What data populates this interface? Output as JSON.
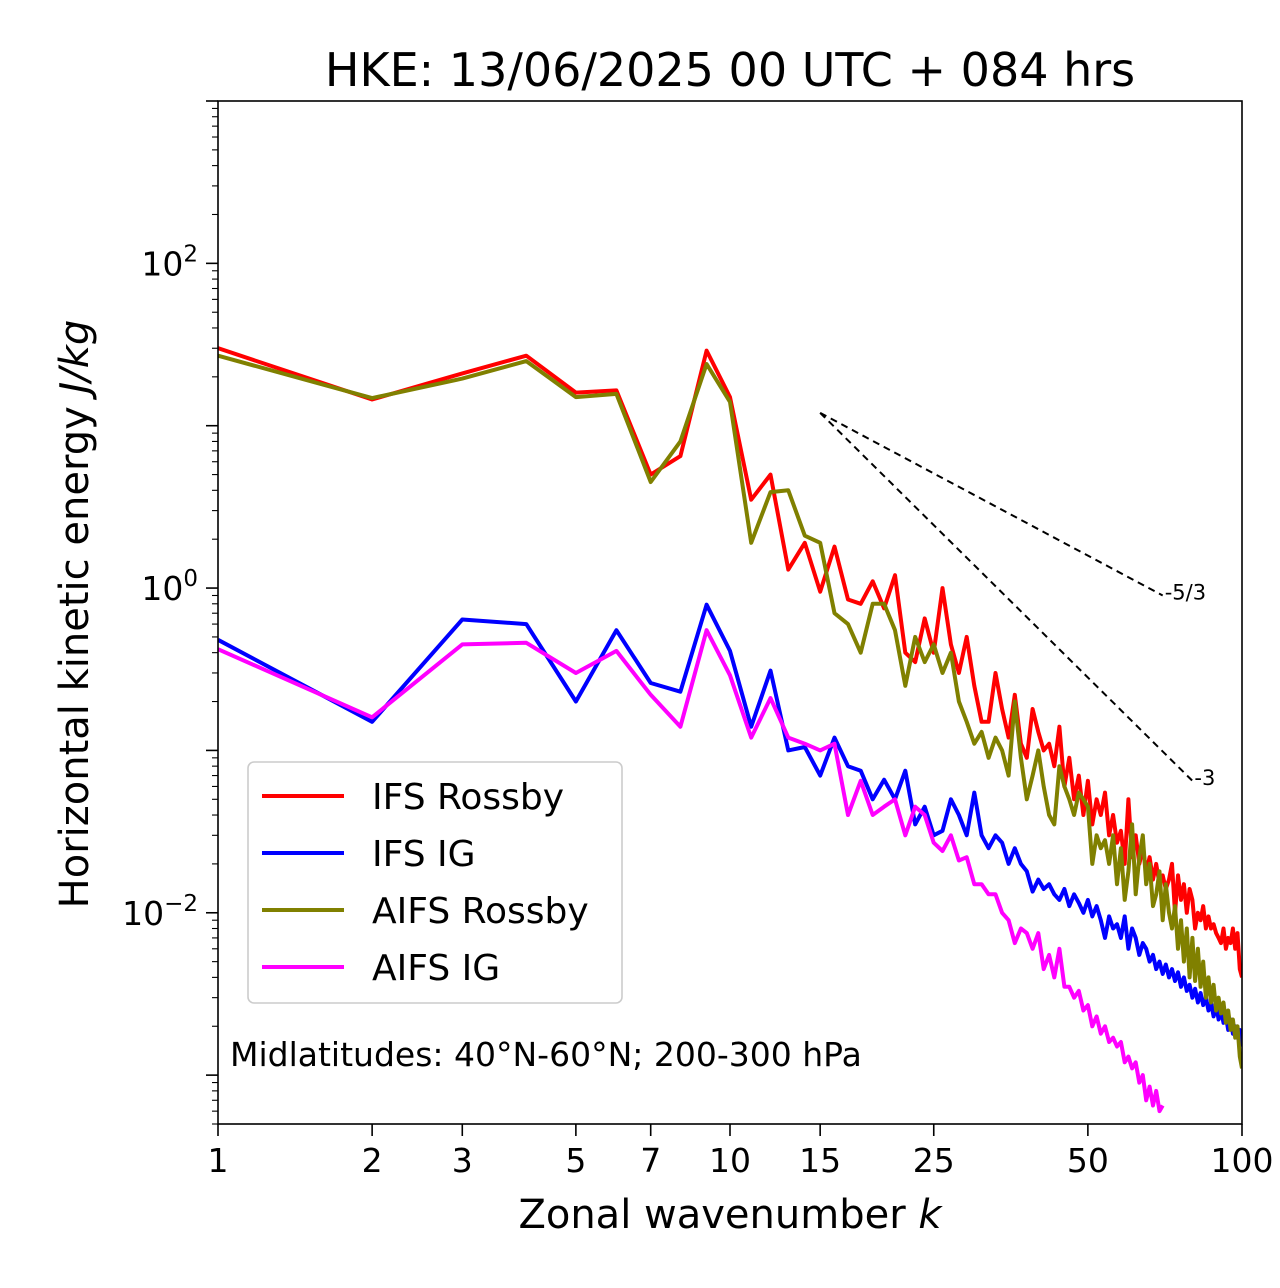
{
  "chart_data": {
    "type": "line",
    "title": "HKE: 13/06/2025 00 UTC + 084 hrs",
    "xlabel": "Zonal wavenumber",
    "xlabel_var": "k",
    "ylabel": "Horizontal kinetic energy",
    "ylabel_unit": "J/kg",
    "xscale": "log",
    "yscale": "log",
    "xlim": [
      1,
      100
    ],
    "ylim": [
      0.0005,
      1000
    ],
    "xticks": [
      1,
      2,
      3,
      5,
      7,
      10,
      15,
      25,
      50,
      100
    ],
    "yticks": [
      {
        "value": 100,
        "base": "10",
        "exp": "2"
      },
      {
        "value": 1,
        "base": "10",
        "exp": "0"
      },
      {
        "value": 0.01,
        "base": "10",
        "exp": "−2"
      }
    ],
    "annotation": "Midlatitudes: 40°N-60°N; 200-300 hPa",
    "legend_position": "lower-left",
    "reference_slopes": [
      {
        "label": "-5/3",
        "x": [
          15,
          70
        ],
        "y": [
          12,
          0.9
        ]
      },
      {
        "label": "-3",
        "x": [
          15,
          80
        ],
        "y": [
          12,
          0.065
        ]
      }
    ],
    "series": [
      {
        "name": "IFS Rossby",
        "color": "#ff0000",
        "x": [
          1,
          2,
          3,
          4,
          5,
          6,
          7,
          8,
          9,
          10,
          11,
          12,
          13,
          14,
          15,
          16,
          17,
          18,
          19,
          20,
          21,
          22,
          23,
          24,
          25,
          26,
          27,
          28,
          29,
          30,
          31,
          32,
          33,
          34,
          35,
          36,
          37,
          38,
          39,
          40,
          41,
          42,
          43,
          44,
          45,
          46,
          47,
          48,
          49,
          50,
          51,
          52,
          53,
          54,
          55,
          56,
          57,
          58,
          59,
          60,
          61,
          62,
          63,
          64,
          65,
          66,
          67,
          68,
          69,
          70,
          71,
          72,
          73,
          74,
          75,
          76,
          77,
          78,
          79,
          80,
          81,
          82,
          83,
          84,
          85,
          86,
          87,
          88,
          89,
          90,
          91,
          92,
          93,
          94,
          95,
          96,
          97,
          98,
          99,
          100
        ],
        "y": [
          30,
          14.5,
          21,
          27,
          16,
          16.5,
          5,
          6.5,
          29,
          15,
          3.5,
          5,
          1.3,
          1.9,
          0.95,
          1.8,
          0.85,
          0.8,
          1.1,
          0.75,
          1.2,
          0.4,
          0.35,
          0.65,
          0.4,
          1,
          0.45,
          0.3,
          0.5,
          0.25,
          0.15,
          0.15,
          0.3,
          0.18,
          0.12,
          0.22,
          0.11,
          0.09,
          0.18,
          0.13,
          0.1,
          0.11,
          0.08,
          0.14,
          0.06,
          0.09,
          0.05,
          0.07,
          0.04,
          0.065,
          0.035,
          0.05,
          0.04,
          0.055,
          0.03,
          0.04,
          0.027,
          0.032,
          0.02,
          0.05,
          0.022,
          0.03,
          0.02,
          0.025,
          0.018,
          0.022,
          0.016,
          0.02,
          0.015,
          0.017,
          0.014,
          0.016,
          0.02,
          0.01,
          0.017,
          0.012,
          0.015,
          0.01,
          0.014,
          0.012,
          0.008,
          0.01,
          0.009,
          0.011,
          0.008,
          0.0095,
          0.008,
          0.0085,
          0.0075,
          0.007,
          0.0065,
          0.008,
          0.006,
          0.007,
          0.0065,
          0.008,
          0.006,
          0.0075,
          0.0045,
          0.004
        ]
      },
      {
        "name": "IFS IG",
        "color": "#0000ff",
        "x": [
          1,
          2,
          3,
          4,
          5,
          6,
          7,
          8,
          9,
          10,
          11,
          12,
          13,
          14,
          15,
          16,
          17,
          18,
          19,
          20,
          21,
          22,
          23,
          24,
          25,
          26,
          27,
          28,
          29,
          30,
          31,
          32,
          33,
          34,
          35,
          36,
          37,
          38,
          39,
          40,
          41,
          42,
          43,
          44,
          45,
          46,
          47,
          48,
          49,
          50,
          51,
          52,
          53,
          54,
          55,
          56,
          57,
          58,
          59,
          60,
          61,
          62,
          63,
          64,
          65,
          66,
          67,
          68,
          69,
          70,
          71,
          72,
          73,
          74,
          75,
          76,
          77,
          78,
          79,
          80,
          81,
          82,
          83,
          84,
          85,
          86,
          87,
          88,
          89,
          90,
          91,
          92,
          93,
          94,
          95,
          96,
          97,
          98,
          99,
          100
        ],
        "y": [
          0.48,
          0.15,
          0.64,
          0.6,
          0.2,
          0.55,
          0.26,
          0.23,
          0.79,
          0.41,
          0.14,
          0.31,
          0.1,
          0.105,
          0.07,
          0.12,
          0.08,
          0.075,
          0.05,
          0.066,
          0.05,
          0.075,
          0.035,
          0.045,
          0.03,
          0.032,
          0.05,
          0.04,
          0.03,
          0.055,
          0.03,
          0.025,
          0.03,
          0.027,
          0.02,
          0.025,
          0.02,
          0.018,
          0.0135,
          0.016,
          0.014,
          0.015,
          0.013,
          0.012,
          0.014,
          0.011,
          0.013,
          0.0115,
          0.01,
          0.012,
          0.0095,
          0.011,
          0.009,
          0.007,
          0.0095,
          0.008,
          0.0085,
          0.007,
          0.0095,
          0.006,
          0.008,
          0.007,
          0.0055,
          0.0065,
          0.006,
          0.005,
          0.0055,
          0.0045,
          0.005,
          0.0042,
          0.0048,
          0.004,
          0.0045,
          0.0038,
          0.0043,
          0.0035,
          0.004,
          0.0033,
          0.0036,
          0.003,
          0.0034,
          0.0028,
          0.0032,
          0.0027,
          0.003,
          0.0025,
          0.0028,
          0.0023,
          0.0027,
          0.0022,
          0.0025,
          0.0021,
          0.0023,
          0.0019,
          0.0022,
          0.0018,
          0.002,
          0.0017,
          0.0019,
          0.0015
        ]
      },
      {
        "name": "AIFS Rossby",
        "color": "#808000",
        "x": [
          1,
          2,
          3,
          4,
          5,
          6,
          7,
          8,
          9,
          10,
          11,
          12,
          13,
          14,
          15,
          16,
          17,
          18,
          19,
          20,
          21,
          22,
          23,
          24,
          25,
          26,
          27,
          28,
          29,
          30,
          31,
          32,
          33,
          34,
          35,
          36,
          37,
          38,
          39,
          40,
          41,
          42,
          43,
          44,
          45,
          46,
          47,
          48,
          49,
          50,
          51,
          52,
          53,
          54,
          55,
          56,
          57,
          58,
          59,
          60,
          61,
          62,
          63,
          64,
          65,
          66,
          67,
          68,
          69,
          70,
          71,
          72,
          73,
          74,
          75,
          76,
          77,
          78,
          79,
          80,
          81,
          82,
          83,
          84,
          85,
          86,
          87,
          88,
          89,
          90,
          91,
          92,
          93,
          94,
          95,
          96,
          97,
          98,
          99,
          100
        ],
        "y": [
          27,
          14.8,
          19.5,
          25,
          15,
          15.7,
          4.5,
          8,
          24,
          14,
          1.9,
          3.9,
          4,
          2.1,
          1.9,
          0.7,
          0.6,
          0.4,
          0.8,
          0.8,
          0.55,
          0.25,
          0.5,
          0.35,
          0.45,
          0.3,
          0.4,
          0.2,
          0.15,
          0.11,
          0.13,
          0.09,
          0.12,
          0.1,
          0.07,
          0.2,
          0.09,
          0.05,
          0.07,
          0.1,
          0.06,
          0.04,
          0.035,
          0.08,
          0.06,
          0.05,
          0.04,
          0.055,
          0.05,
          0.045,
          0.02,
          0.03,
          0.025,
          0.028,
          0.02,
          0.03,
          0.015,
          0.025,
          0.012,
          0.018,
          0.035,
          0.013,
          0.022,
          0.03,
          0.015,
          0.02,
          0.011,
          0.013,
          0.018,
          0.009,
          0.015,
          0.01,
          0.008,
          0.011,
          0.006,
          0.009,
          0.005,
          0.008,
          0.004,
          0.007,
          0.0038,
          0.006,
          0.0035,
          0.005,
          0.003,
          0.004,
          0.0028,
          0.0036,
          0.0025,
          0.003,
          0.0024,
          0.0028,
          0.0021,
          0.0025,
          0.0019,
          0.0022,
          0.0017,
          0.002,
          0.0013,
          0.0011
        ]
      },
      {
        "name": "AIFS IG",
        "color": "#ff00ff",
        "x": [
          1,
          2,
          3,
          4,
          5,
          6,
          7,
          8,
          9,
          10,
          11,
          12,
          13,
          14,
          15,
          16,
          17,
          18,
          19,
          20,
          21,
          22,
          23,
          24,
          25,
          26,
          27,
          28,
          29,
          30,
          31,
          32,
          33,
          34,
          35,
          36,
          37,
          38,
          39,
          40,
          41,
          42,
          43,
          44,
          45,
          46,
          47,
          48,
          49,
          50,
          51,
          52,
          53,
          54,
          55,
          56,
          57,
          58,
          59,
          60,
          61,
          62,
          63,
          64,
          65,
          66,
          67,
          68,
          69,
          70
        ],
        "y": [
          0.42,
          0.16,
          0.45,
          0.46,
          0.3,
          0.41,
          0.22,
          0.14,
          0.55,
          0.29,
          0.12,
          0.21,
          0.12,
          0.11,
          0.1,
          0.11,
          0.04,
          0.065,
          0.04,
          0.045,
          0.05,
          0.03,
          0.045,
          0.04,
          0.027,
          0.024,
          0.03,
          0.021,
          0.022,
          0.015,
          0.015,
          0.013,
          0.013,
          0.01,
          0.009,
          0.0065,
          0.008,
          0.0075,
          0.006,
          0.0075,
          0.0045,
          0.0055,
          0.004,
          0.006,
          0.0035,
          0.0035,
          0.003,
          0.0033,
          0.0025,
          0.0027,
          0.002,
          0.0023,
          0.0018,
          0.002,
          0.0016,
          0.0017,
          0.0015,
          0.0016,
          0.0012,
          0.0013,
          0.0011,
          0.0012,
          0.0009,
          0.001,
          0.0007,
          0.00085,
          0.00065,
          0.0008,
          0.0006,
          0.00065
        ]
      }
    ]
  }
}
